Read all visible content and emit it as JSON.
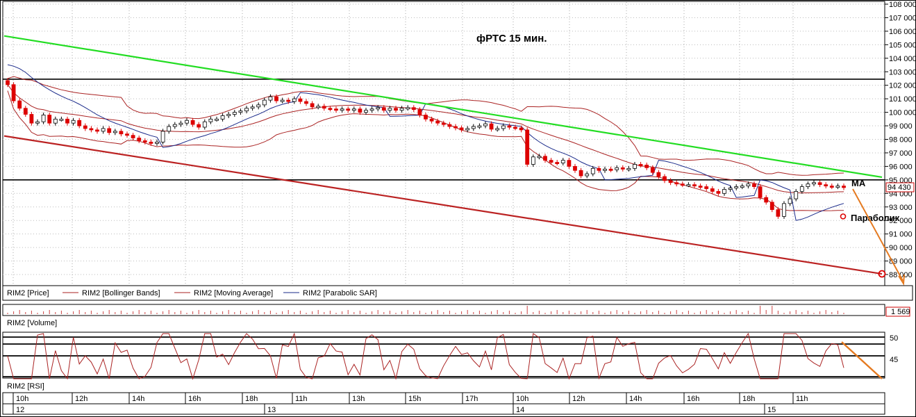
{
  "chart_data": [
    {
      "type": "candlestick",
      "title": "фРТС   15 мин.",
      "y_ticks": [
        "108 000",
        "107 000",
        "106 000",
        "105 000",
        "104 000",
        "103 000",
        "102 000",
        "101 000",
        "100 000",
        "99 000",
        "98 000",
        "97 000",
        "96 000",
        "95 000",
        "94 000",
        "93 000",
        "92 000",
        "91 000",
        "90 000",
        "89 000",
        "88 000"
      ],
      "ylim": [
        87500,
        108200
      ],
      "last_price_label": "94 430",
      "legend": [
        "RIM2 [Price]",
        "RIM2 [Bollinger Bands]",
        "RIM2 [Moving Average]",
        "RIM2 [Parabolic SAR]"
      ],
      "annotations": {
        "ma": "MA",
        "parabolic": "Параболик"
      },
      "horizontal_levels": [
        102450,
        95000
      ],
      "trendlines": [
        {
          "color": "#22dd22",
          "from": [
            0,
            105650
          ],
          "to": [
            1,
            95200
          ]
        },
        {
          "color": "#bb2222",
          "from": [
            0,
            98250
          ],
          "to": [
            1,
            88050
          ]
        }
      ],
      "closes": [
        102050,
        100850,
        100300,
        99850,
        99200,
        99300,
        99800,
        99200,
        99500,
        99500,
        99200,
        99400,
        99000,
        98800,
        98700,
        98600,
        98800,
        98500,
        98600,
        98400,
        98300,
        98100,
        97900,
        97800,
        97700,
        97800,
        98600,
        98950,
        99100,
        99200,
        99400,
        99100,
        98900,
        99300,
        99500,
        99500,
        99750,
        99850,
        100000,
        100100,
        100300,
        100400,
        100550,
        100900,
        101150,
        100850,
        100900,
        100800,
        101000,
        100800,
        100650,
        100400,
        100450,
        100300,
        100250,
        100150,
        100250,
        100150,
        100250,
        100000,
        100150,
        100250,
        100350,
        100150,
        100300,
        100150,
        100300,
        100350,
        100200,
        99800,
        99500,
        99350,
        99200,
        99100,
        98950,
        98850,
        98700,
        98800,
        98950,
        99000,
        99150,
        98750,
        98800,
        99000,
        98900,
        98850,
        98700,
        96150,
        96700,
        96750,
        96450,
        96300,
        96250,
        96450,
        96000,
        95700,
        95300,
        95450,
        95850,
        95700,
        95800,
        95750,
        95900,
        95800,
        95850,
        96150,
        96100,
        95900,
        95550,
        95250,
        94950,
        94800,
        94700,
        94650,
        94650,
        94550,
        94500,
        94350,
        94150,
        94000,
        94300,
        94400,
        94500,
        94550,
        94700,
        94500,
        93700,
        93350,
        92800,
        92300,
        93250,
        93600,
        94150,
        94500,
        94700,
        94800,
        94650,
        94550,
        94500,
        94550,
        94430
      ],
      "lower_pane": {
        "volume_label": "RIM2 [Volume]",
        "volume_last": "1 569",
        "rsi_label": "RIM2 [RSI]",
        "rsi_ticks": [
          "50",
          "45"
        ]
      },
      "time_axis": {
        "hours": [
          "10h",
          "12h",
          "14h",
          "16h",
          "18h",
          "11h",
          "13h",
          "15h",
          "17h",
          "10h",
          "12h",
          "14h",
          "16h",
          "18h",
          "11h"
        ],
        "days": [
          "12",
          "13",
          "14",
          "15"
        ]
      }
    }
  ]
}
